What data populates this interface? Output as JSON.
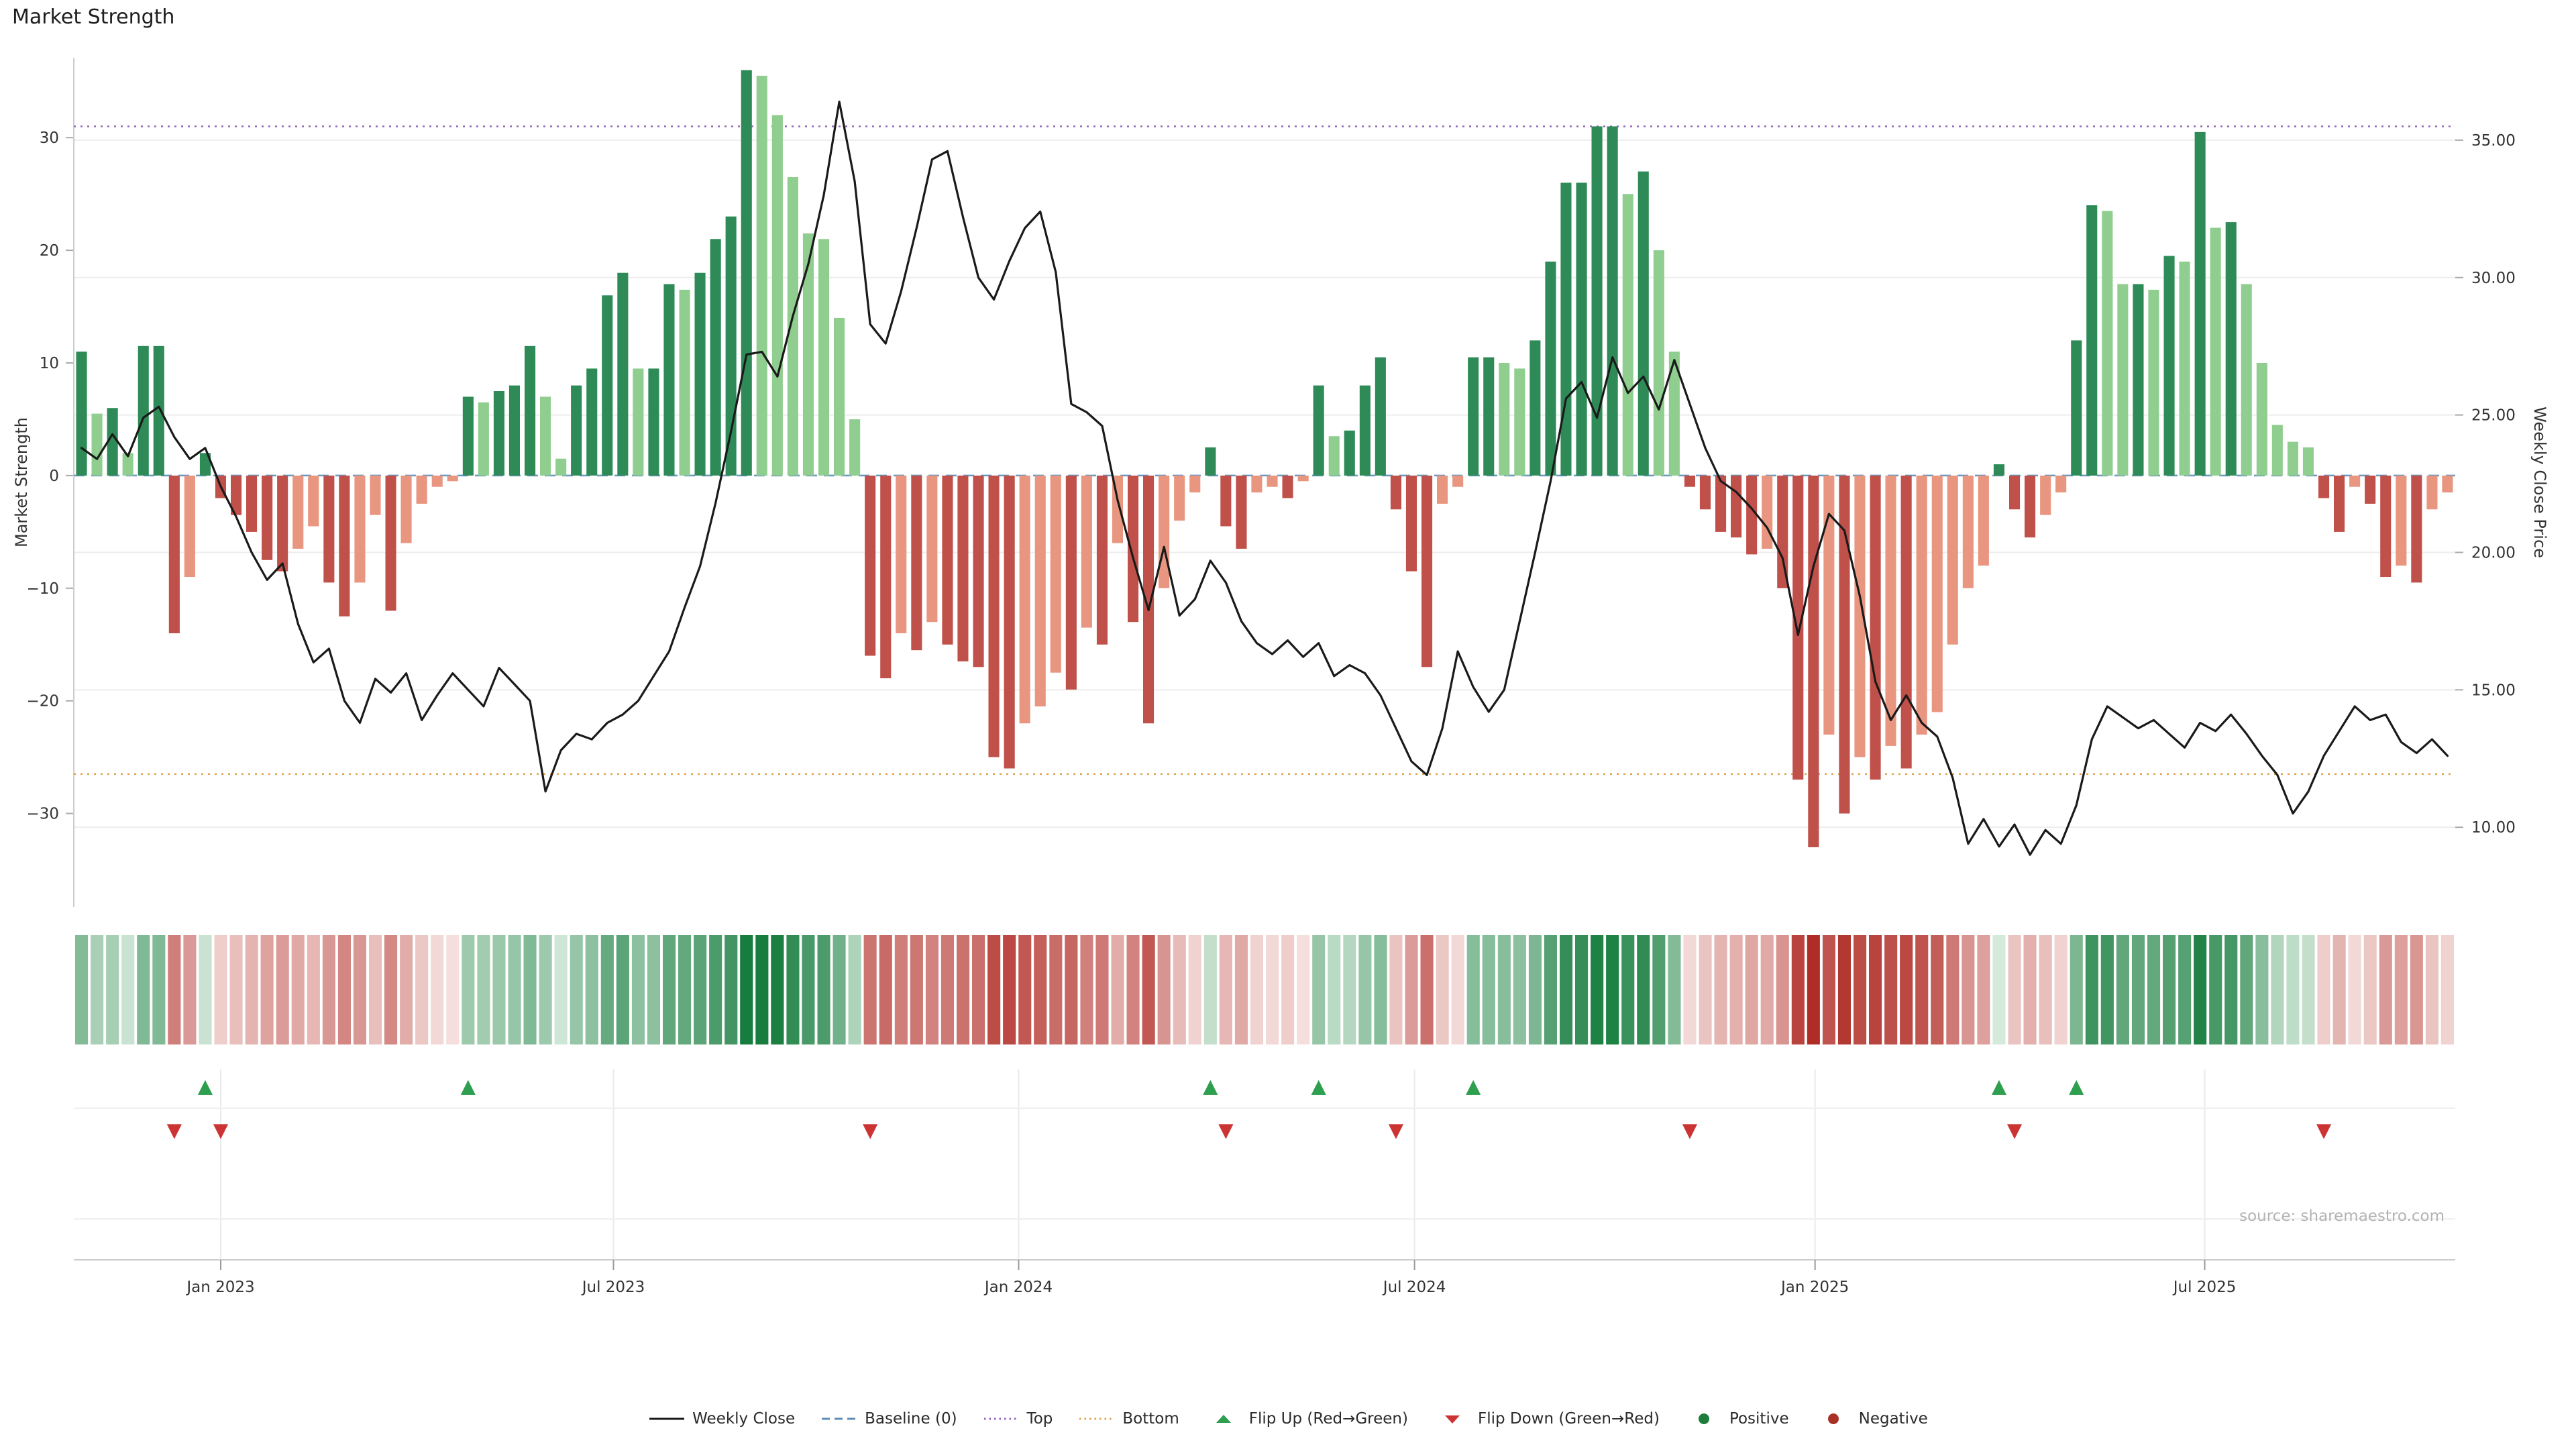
{
  "title": "Market Strength",
  "source": "source: sharemaestro.com",
  "colors": {
    "positive_dark": "#2e8b57",
    "positive_light": "#90ce90",
    "negative_dark": "#c0504a",
    "negative_light": "#e99680",
    "line": "#1a1a1a",
    "baseline": "#5b8db8",
    "top": "#9467bd",
    "bottom": "#dfa34f",
    "flip_up": "#2e9e4f",
    "flip_down": "#cc3333",
    "positive_dot": "#1e7d3c",
    "negative_dot": "#a93226",
    "heat_green_max": "#167d3e",
    "heat_red_max": "#b02c26"
  },
  "chart_data": {
    "type": "combo-bar-line-heatmap",
    "x_unit": "week",
    "left_axis": {
      "label": "Market Strength",
      "ylim": [
        -38.3,
        37.1
      ],
      "ticks": [
        {
          "label": "30",
          "value": 30
        },
        {
          "label": "20",
          "value": 20
        },
        {
          "label": "10",
          "value": 10
        },
        {
          "label": "0",
          "value": 0
        },
        {
          "label": "−10",
          "value": -10
        },
        {
          "label": "−20",
          "value": -20
        },
        {
          "label": "−30",
          "value": -30
        }
      ]
    },
    "right_axis": {
      "label": "Weekly Close Price",
      "ylim": [
        7.1,
        38.0
      ],
      "ticks": [
        {
          "label": "35.00",
          "value": 35
        },
        {
          "label": "30.00",
          "value": 30
        },
        {
          "label": "25.00",
          "value": 25
        },
        {
          "label": "20.00",
          "value": 20
        },
        {
          "label": "15.00",
          "value": 15
        },
        {
          "label": "10.00",
          "value": 10
        }
      ]
    },
    "x_ticks": [
      {
        "label": "Jan 2023",
        "week": 9
      },
      {
        "label": "Jul 2023",
        "week": 34.4
      },
      {
        "label": "Jan 2024",
        "week": 60.6
      },
      {
        "label": "Jul 2024",
        "week": 86.2
      },
      {
        "label": "Jan 2025",
        "week": 112.1
      },
      {
        "label": "Jul 2025",
        "week": 137.3
      }
    ],
    "reference_lines": {
      "baseline": 0,
      "top": 31,
      "bottom": -26.5
    },
    "series": [
      {
        "name": "Market Strength",
        "type": "bar",
        "values": [
          11,
          5.5,
          6,
          2,
          11.5,
          11.5,
          -14,
          -9,
          2,
          -2,
          -3.5,
          -5,
          -7.5,
          -8.5,
          -6.5,
          -4.5,
          -9.5,
          -12.5,
          -9.5,
          -3.5,
          -12,
          -6,
          -2.5,
          -1,
          -0.5,
          7,
          6.5,
          7.5,
          8,
          11.5,
          7,
          1.5,
          8,
          9.5,
          16,
          18,
          9.5,
          9.5,
          17,
          16.5,
          18,
          21,
          23,
          36,
          35.5,
          32,
          26.5,
          21.5,
          21,
          14,
          5,
          -16,
          -18,
          -14,
          -15.5,
          -13,
          -15,
          -16.5,
          -17,
          -25,
          -26,
          -22,
          -20.5,
          -17.5,
          -19,
          -13.5,
          -15,
          -6,
          -13,
          -22,
          -10,
          -4,
          -1.5,
          2.5,
          -4.5,
          -6.5,
          -1.5,
          -1,
          -2,
          -0.5,
          8,
          3.5,
          4,
          8,
          10.5,
          -3,
          -8.5,
          -17,
          -2.5,
          -1,
          10.5,
          10.5,
          10,
          9.5,
          12,
          19,
          26,
          26,
          31,
          31,
          25,
          27,
          20,
          11,
          -1,
          -3,
          -5,
          -5.5,
          -7,
          -6.5,
          -10,
          -27,
          -33,
          -23,
          -30,
          -25,
          -27,
          -24,
          -26,
          -23,
          -21,
          -15,
          -10,
          -8,
          1,
          -3,
          -5.5,
          -3.5,
          -1.5,
          12,
          24,
          23.5,
          17,
          17,
          16.5,
          19.5,
          19,
          30.5,
          22,
          22.5,
          17,
          10,
          4.5,
          3,
          2.5,
          -2,
          -5,
          -1,
          -2.5,
          -9,
          -8,
          -9.5,
          -3,
          -1.5
        ]
      },
      {
        "name": "Weekly Close",
        "type": "line",
        "values": [
          23.8,
          23.4,
          24.3,
          23.5,
          24.9,
          25.3,
          24.2,
          23.4,
          23.8,
          22.4,
          21.3,
          20.0,
          19.0,
          19.6,
          17.4,
          16.0,
          16.5,
          14.6,
          13.8,
          15.4,
          14.9,
          15.6,
          13.9,
          14.8,
          15.6,
          15.0,
          14.4,
          15.8,
          15.2,
          14.6,
          11.3,
          12.8,
          13.4,
          13.2,
          13.8,
          14.1,
          14.6,
          15.5,
          16.4,
          18.0,
          19.5,
          21.8,
          24.4,
          27.2,
          27.3,
          26.4,
          28.6,
          30.5,
          33.0,
          36.4,
          33.5,
          28.3,
          27.6,
          29.5,
          31.8,
          34.3,
          34.6,
          32.2,
          30.0,
          29.2,
          30.6,
          31.8,
          32.4,
          30.2,
          25.4,
          25.1,
          24.6,
          21.9,
          19.8,
          17.9,
          20.2,
          17.7,
          18.3,
          19.7,
          18.9,
          17.5,
          16.7,
          16.3,
          16.8,
          16.2,
          16.7,
          15.5,
          15.9,
          15.6,
          14.8,
          13.6,
          12.4,
          11.9,
          13.6,
          16.4,
          15.1,
          14.2,
          15.0,
          17.5,
          20.0,
          22.6,
          25.6,
          26.2,
          24.9,
          27.1,
          25.8,
          26.4,
          25.2,
          27.0,
          25.4,
          23.8,
          22.6,
          22.2,
          21.6,
          20.9,
          19.8,
          17.0,
          19.5,
          21.4,
          20.8,
          18.4,
          15.3,
          13.9,
          14.8,
          13.8,
          13.3,
          11.8,
          9.4,
          10.3,
          9.3,
          10.1,
          9.0,
          9.9,
          9.4,
          10.8,
          13.2,
          14.4,
          14.0,
          13.6,
          13.9,
          13.4,
          12.9,
          13.8,
          13.5,
          14.1,
          13.4,
          12.6,
          11.9,
          10.5,
          11.3,
          12.6,
          13.5,
          14.4,
          13.9,
          14.1,
          13.1,
          12.7,
          13.2,
          12.6
        ]
      }
    ],
    "heatmap": "diverging red-green strip derived from Market Strength bar values",
    "flip_markers": "up triangle where bars flip red to green, down triangle where bars flip green to red"
  },
  "legend": [
    {
      "label": "Weekly Close",
      "swatch": "line",
      "color_key": "line"
    },
    {
      "label": "Baseline (0)",
      "swatch": "dash",
      "color_key": "baseline"
    },
    {
      "label": "Top",
      "swatch": "dot",
      "color_key": "top"
    },
    {
      "label": "Bottom",
      "swatch": "dot",
      "color_key": "bottom"
    },
    {
      "label": "Flip Up (Red→Green)",
      "swatch": "tri-up",
      "color_key": "flip_up"
    },
    {
      "label": "Flip Down (Green→Red)",
      "swatch": "tri-down",
      "color_key": "flip_down"
    },
    {
      "label": "Positive",
      "swatch": "circle",
      "color_key": "positive_dot"
    },
    {
      "label": "Negative",
      "swatch": "circle",
      "color_key": "negative_dot"
    }
  ]
}
